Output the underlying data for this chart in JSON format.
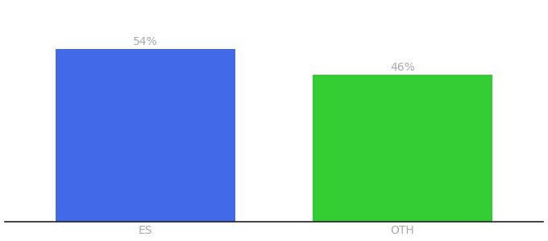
{
  "categories": [
    "ES",
    "OTH"
  ],
  "values": [
    54,
    46
  ],
  "bar_colors": [
    "#4169e8",
    "#33cc33"
  ],
  "label_texts": [
    "54%",
    "46%"
  ],
  "label_color": "#aaaaaa",
  "ylim": [
    0,
    68
  ],
  "bar_width": 0.7,
  "background_color": "#ffffff",
  "tick_color": "#aaaaaa",
  "spine_color": "#222222",
  "label_fontsize": 10,
  "tick_fontsize": 10
}
